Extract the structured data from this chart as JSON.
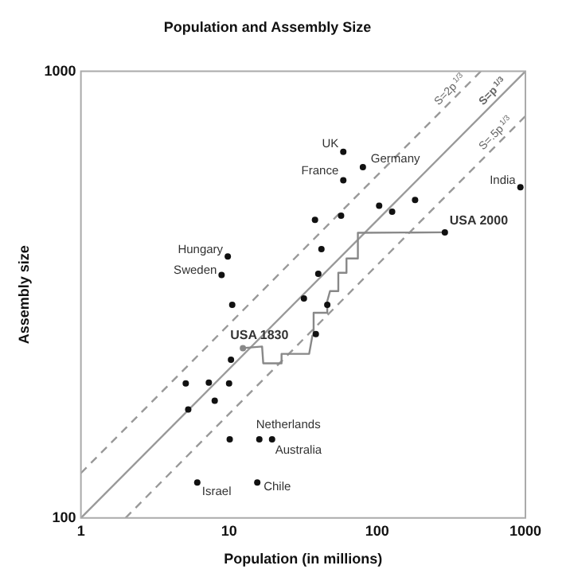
{
  "chart_data": {
    "type": "scatter",
    "title": "Population and Assembly Size",
    "xlabel": "Population (in millions)",
    "ylabel": "Assembly size",
    "log": "xy",
    "xlim": [
      1,
      1000
    ],
    "ylim": [
      100,
      1000
    ],
    "xticks": [
      1,
      10,
      100,
      1000
    ],
    "yticks": [
      100,
      1000
    ],
    "grid": false,
    "legend": false,
    "series": [
      {
        "type": "scatter",
        "color": "#111111",
        "marker": "circle",
        "x": [
          59,
          80,
          59,
          925,
          103,
          180,
          126,
          57,
          38,
          286,
          9.8,
          8.9,
          42,
          40,
          32,
          10.5,
          46,
          38.5,
          10.3,
          5.1,
          7.3,
          10,
          8.0,
          5.3,
          10.1,
          16,
          19.5,
          6.1,
          15.5
        ],
        "values": [
          660,
          610,
          570,
          550,
          500,
          515,
          485,
          475,
          465,
          436,
          385,
          350,
          400,
          352,
          310,
          300,
          300,
          258,
          226,
          200,
          201,
          200,
          183,
          175,
          150,
          150,
          150,
          120,
          120
        ]
      },
      {
        "type": "line",
        "color": "#888888",
        "marker": "none",
        "line_style": "solid",
        "x": [
          12.4,
          16.7,
          17,
          22.6,
          22.6,
          34.7,
          36.5,
          37.2,
          46,
          46,
          48,
          54.6,
          54.6,
          62,
          62,
          74,
          74,
          286
        ],
        "values": [
          240,
          242,
          222,
          222,
          233,
          233,
          256,
          288,
          288,
          306,
          322,
          322,
          354,
          354,
          381,
          381,
          435,
          436
        ]
      },
      {
        "type": "scatter",
        "color": "#888888",
        "marker": "circle",
        "x": [
          12.4
        ],
        "values": [
          240
        ]
      },
      {
        "type": "line",
        "name": "S=2p$^{1/3}$",
        "color": "#999999",
        "marker": "none",
        "line_style": "dashed",
        "x": [
          1,
          500
        ],
        "values": [
          126,
          1000
        ]
      },
      {
        "type": "line",
        "name": "S=p$^{1/3}$",
        "color": "#999999",
        "marker": "none",
        "line_style": "solid",
        "x": [
          1,
          1000
        ],
        "values": [
          100,
          1000
        ]
      },
      {
        "type": "line",
        "name": "S=.5p$^{1/3}$",
        "color": "#999999",
        "marker": "none",
        "line_style": "dashed",
        "x": [
          2,
          1000
        ],
        "values": [
          100,
          794
        ]
      }
    ],
    "annotations": [
      {
        "text": "UK",
        "x": 59,
        "y": 660
      },
      {
        "text": "France",
        "x": 59,
        "y": 570
      },
      {
        "text": "Germany",
        "x": 80,
        "y": 610
      },
      {
        "text": "India",
        "x": 925,
        "y": 550
      },
      {
        "text": "USA 2000",
        "x": 286,
        "y": 436
      },
      {
        "text": "Hungary",
        "x": 9.8,
        "y": 385
      },
      {
        "text": "Sweden",
        "x": 8.9,
        "y": 350
      },
      {
        "text": "USA 1830",
        "x": 12.4,
        "y": 240
      },
      {
        "text": "Netherlands",
        "x": 16,
        "y": 150
      },
      {
        "text": "Australia",
        "x": 19.5,
        "y": 150
      },
      {
        "text": "Israel",
        "x": 6.1,
        "y": 120
      },
      {
        "text": "Chile",
        "x": 15.5,
        "y": 120
      }
    ]
  }
}
